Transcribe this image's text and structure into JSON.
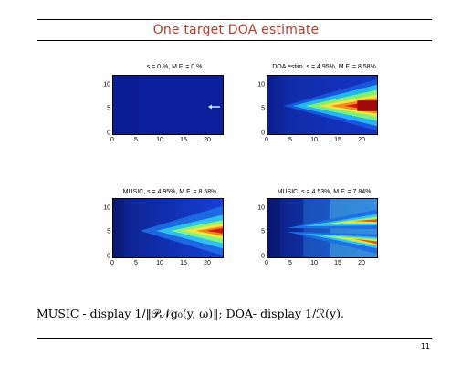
{
  "slide": {
    "title": "One target DOA estimate",
    "page_number": "11",
    "caption": "MUSIC - display 1/‖𝒫𝒩g₀(y, ω)‖; DOA- display 1/ℛ(y)."
  },
  "colors": {
    "title": "#c0392b",
    "rule": "#000000"
  },
  "panels": [
    {
      "id": "tl",
      "title": "s = 0.%, M.F. = 0.%",
      "pattern": "uniform",
      "x_ticks": [
        "0",
        "5",
        "10",
        "15",
        "20"
      ],
      "y_ticks": [
        "10",
        "5",
        "0"
      ]
    },
    {
      "id": "tr",
      "title": "DOA estim. s = 4.95%, M.F. = 8.58%",
      "pattern": "cone-strong",
      "x_ticks": [
        "0",
        "5",
        "10",
        "15",
        "20"
      ],
      "y_ticks": [
        "10",
        "5",
        "0"
      ]
    },
    {
      "id": "bl",
      "title": "MUSIC, s = 4.95%, M.F. = 8.58%",
      "pattern": "cone-music",
      "x_ticks": [
        "0",
        "5",
        "10",
        "15",
        "20"
      ],
      "y_ticks": [
        "10",
        "5",
        "0"
      ]
    },
    {
      "id": "br",
      "title": "MUSIC, s = 4.53%, M.F. = 7.84%",
      "pattern": "split",
      "x_ticks": [
        "0",
        "5",
        "10",
        "15",
        "20"
      ],
      "y_ticks": [
        "10",
        "5",
        "0"
      ]
    }
  ]
}
